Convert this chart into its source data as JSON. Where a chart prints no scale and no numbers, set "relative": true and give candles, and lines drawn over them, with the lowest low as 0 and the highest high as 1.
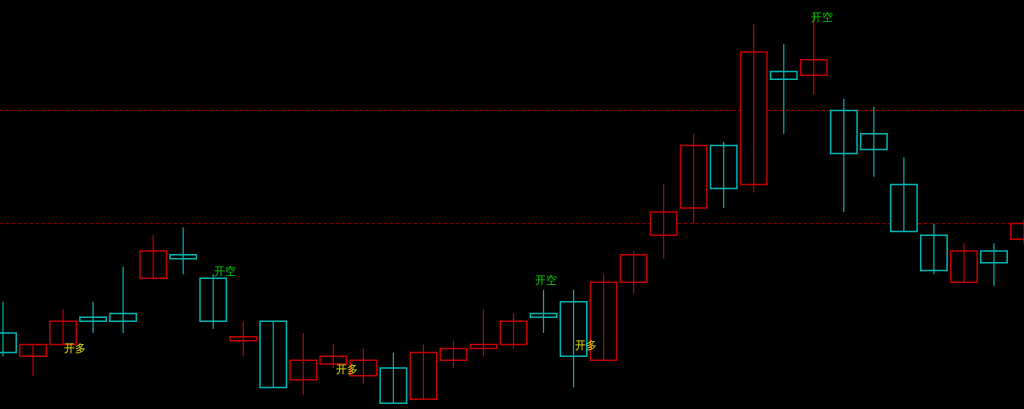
{
  "chart_data": {
    "type": "candlestick",
    "relative": true,
    "categories": [
      null,
      null,
      null,
      null,
      null,
      null,
      null,
      null,
      null,
      null,
      null,
      null,
      null,
      null,
      null,
      null,
      null,
      null,
      null,
      null,
      null,
      null,
      null,
      null,
      null,
      null,
      null,
      null,
      null,
      null,
      null,
      null,
      null,
      null,
      null
    ],
    "ohlc": [
      [
        0.18,
        0.26,
        0.12,
        0.13
      ],
      [
        0.12,
        0.15,
        0.07,
        0.15
      ],
      [
        0.15,
        0.24,
        0.15,
        0.21
      ],
      [
        0.22,
        0.26,
        0.18,
        0.21
      ],
      [
        0.23,
        0.35,
        0.18,
        0.21
      ],
      [
        0.32,
        0.43,
        0.32,
        0.39
      ],
      [
        0.38,
        0.45,
        0.33,
        0.37
      ],
      [
        0.32,
        0.33,
        0.19,
        0.21
      ],
      [
        0.16,
        0.21,
        0.12,
        0.17
      ],
      [
        0.21,
        0.21,
        0.04,
        0.04
      ],
      [
        0.06,
        0.18,
        0.02,
        0.11
      ],
      [
        0.1,
        0.15,
        0.09,
        0.12
      ],
      [
        0.07,
        0.14,
        0.05,
        0.11
      ],
      [
        0.09,
        0.13,
        0.0,
        0.0
      ],
      [
        0.01,
        0.15,
        0.01,
        0.13
      ],
      [
        0.11,
        0.16,
        0.09,
        0.14
      ],
      [
        0.14,
        0.24,
        0.12,
        0.15
      ],
      [
        0.15,
        0.23,
        0.14,
        0.21
      ],
      [
        0.23,
        0.29,
        0.18,
        0.22
      ],
      [
        0.26,
        0.29,
        0.04,
        0.12
      ],
      [
        0.11,
        0.33,
        0.11,
        0.31
      ],
      [
        0.31,
        0.39,
        0.28,
        0.38
      ],
      [
        0.43,
        0.56,
        0.37,
        0.49
      ],
      [
        0.5,
        0.69,
        0.46,
        0.66
      ],
      [
        0.66,
        0.67,
        0.5,
        0.55
      ],
      [
        0.56,
        0.97,
        0.54,
        0.9
      ],
      [
        0.85,
        0.92,
        0.69,
        0.83
      ],
      [
        0.84,
        1.0,
        0.79,
        0.88
      ],
      [
        0.75,
        0.78,
        0.49,
        0.64
      ],
      [
        0.69,
        0.76,
        0.58,
        0.65
      ],
      [
        0.56,
        0.63,
        0.44,
        0.44
      ],
      [
        0.43,
        0.46,
        0.33,
        0.34
      ],
      [
        0.31,
        0.41,
        0.31,
        0.39
      ],
      [
        0.39,
        0.41,
        0.3,
        0.36
      ],
      [
        0.42,
        0.47,
        0.41,
        0.46
      ]
    ],
    "colors": [
      "#00b4b4",
      "#c00000",
      "#c00000",
      "#00b4b4",
      "#00b4b4",
      "#c00000",
      "#00b4b4",
      "#00b4b4",
      "#c00000",
      "#00b4b4",
      "#c00000",
      "#c00000",
      "#c00000",
      "#00b4b4",
      "#c00000",
      "#c00000",
      "#c00000",
      "#c00000",
      "#00b4b4",
      "#00b4b4",
      "#c00000",
      "#c00000",
      "#c00000",
      "#c00000",
      "#00b4b4",
      "#c00000",
      "#00b4b4",
      "#c00000",
      "#00b4b4",
      "#00b4b4",
      "#00b4b4",
      "#00b4b4",
      "#c00000",
      "#00b4b4",
      "#c00000"
    ],
    "ref_lines": [
      {
        "axis": "y",
        "value": 0.75,
        "color": "#a00000",
        "line_style": "dotted"
      },
      {
        "axis": "y",
        "value": 0.46,
        "color": "#a00000",
        "line_style": "dotted"
      }
    ],
    "annotations": [
      "开多",
      "开空",
      "开多",
      "开空",
      "开多",
      "开空"
    ]
  }
}
